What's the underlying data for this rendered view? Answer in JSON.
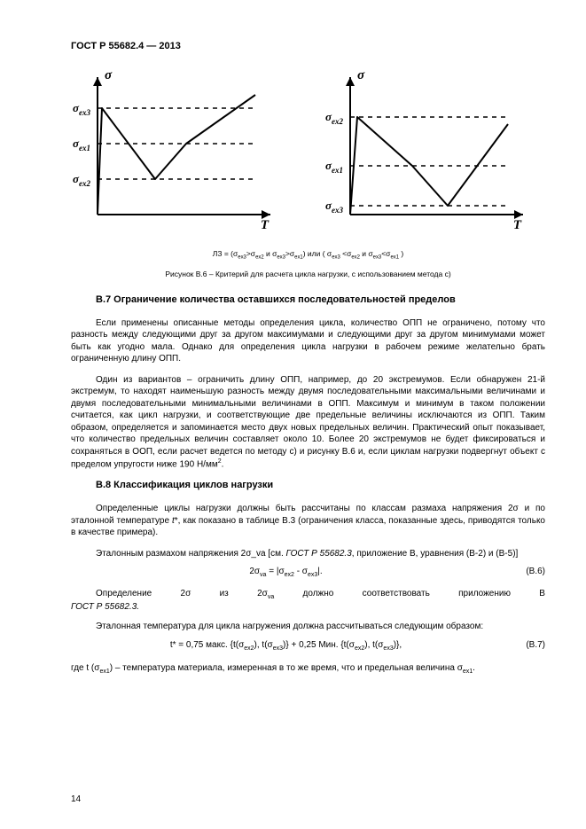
{
  "header": "ГОСТ Р 55682.4 — 2013",
  "chart_left": {
    "y_axis": "σ",
    "x_axis": "T",
    "levels": [
      "σ_ex3",
      "σ_ex1",
      "σ_ex2"
    ],
    "line_points": [
      [
        30,
        170
      ],
      [
        35,
        50
      ],
      [
        95,
        130
      ],
      [
        130,
        90
      ],
      [
        208,
        35
      ]
    ],
    "dash_y": [
      50,
      90,
      130
    ],
    "axis_color": "#000000",
    "line_width": 2,
    "dash_pattern": "5,5"
  },
  "chart_right": {
    "y_axis": "σ",
    "x_axis": "T",
    "levels": [
      "σ_ex2",
      "σ_ex1",
      "σ_ex3"
    ],
    "line_points": [
      [
        30,
        170
      ],
      [
        38,
        60
      ],
      [
        100,
        115
      ],
      [
        140,
        160
      ],
      [
        208,
        68
      ]
    ],
    "dash_y": [
      60,
      115,
      160
    ],
    "axis_color": "#000000",
    "line_width": 2,
    "dash_pattern": "5,5"
  },
  "under_charts": "ЛЗ = (σ_ex3>σ_ex2 и σ_ex3>σ_ex1) или ( σ_ex3 <σ_ex2 и σ_ex3<σ_ex1 )",
  "fig_caption": "Рисунок В.6 – Критерий для расчета цикла нагрузки, с использованием метода с)",
  "section_b7": {
    "title": "В.7 Ограничение количества оставшихся последовательностей пределов",
    "p1": "Если применены описанные методы определения цикла, количество ОПП не ограничено, потому что разность между следующими друг за другом максимумами и следующими друг за другом минимумами может быть как угодно мала. Однако для определения цикла нагрузки в рабочем режиме желательно брать ограниченную длину ОПП.",
    "p2": "Один из вариантов – ограничить длину ОПП, например, до 20 экстремумов. Если обнаружен 21-й экстремум, то находят наименьшую разность между двумя последовательными максимальными величинами и двумя последовательными минимальными величинами в ОПП. Максимум и минимум в таком положении считается, как цикл нагрузки, и соответствующие две предельные величины исключаются из ОПП. Таким образом, определяется и запоминается место двух новых предельных величин. Практический опыт показывает, что количество предельных величин составляет около 10. Более 20 экстремумов не будет фиксироваться и сохраняться в ООП, если расчет ведется по методу с) и рисунку В.6 и, если циклам нагрузки подвергнут объект с пределом упругости ниже 190 Н/мм².",
    "sup_note": "2"
  },
  "section_b8": {
    "title": "В.8 Классификация циклов нагрузки",
    "p1": "Определенные циклы нагрузки должны быть рассчитаны по классам размаха напряжения 2σ и по эталонной температуре t*, как показано в таблице В.3 (ограничения класса, показанные здесь, приводятся только в качестве примера).",
    "p2a": "Эталонным размахом напряжения 2σ_va [см. ",
    "p2_ref": "ГОСТ Р 55682.3",
    "p2b": ", приложение B, уравнения (В-2) и (В-5)]",
    "eq_b6": "2σ_va = |σ_ex2 - σ_ex3|.",
    "eq_b6_num": "(В.6)",
    "p3_words": [
      "Определение",
      "2σ",
      "из",
      "2σ_va",
      "должно",
      "соответствовать",
      "приложению",
      "В"
    ],
    "p3_ref": "ГОСТ Р 55682.3.",
    "p4": "Эталонная температура для цикла нагружения должна рассчитываться следующим образом:",
    "eq_b7": "t* = 0,75 макс. {t(σ_ex2), t(σ_ex3)} + 0,25 Мин. {t(σ_ex2), t(σ_ex3)},",
    "eq_b7_num": "(В.7)",
    "p5": "где t (σ_ex1) – температура материала, измеренная в то же время, что и предельная величина σ_ex1."
  },
  "page_number": "14"
}
